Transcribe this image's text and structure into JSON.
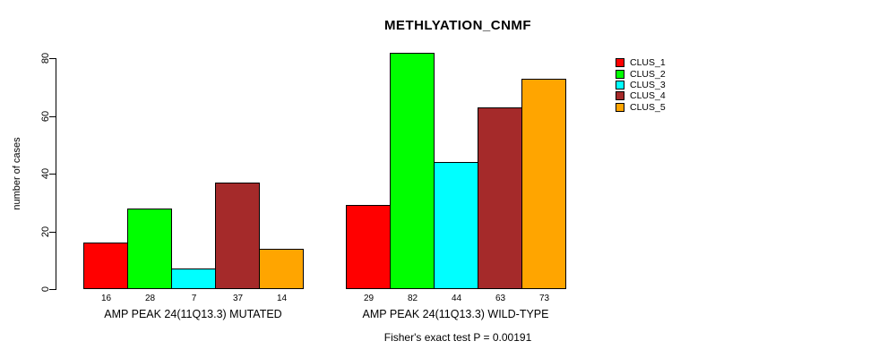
{
  "title": "METHLYATION_CNMF",
  "y_axis": {
    "label": "number of cases",
    "ticks": [
      0,
      20,
      40,
      60,
      80
    ]
  },
  "footer": "Fisher's exact test P = 0.00191",
  "legend": {
    "entries": [
      {
        "label": "CLUS_1",
        "color": "#FF0000"
      },
      {
        "label": "CLUS_2",
        "color": "#00FF00"
      },
      {
        "label": "CLUS_3",
        "color": "#00FFFF"
      },
      {
        "label": "CLUS_4",
        "color": "#A52A2A"
      },
      {
        "label": "CLUS_5",
        "color": "#FFA500"
      }
    ]
  },
  "chart_data": {
    "type": "bar",
    "title": "METHLYATION_CNMF",
    "xlabel": "",
    "ylabel": "number of cases",
    "ylim": [
      0,
      80
    ],
    "yticks": [
      0,
      20,
      40,
      60,
      80
    ],
    "grid": false,
    "legend_position": "right",
    "categories": [
      "CLUS_1",
      "CLUS_2",
      "CLUS_3",
      "CLUS_4",
      "CLUS_5"
    ],
    "colors": [
      "#FF0000",
      "#00FF00",
      "#00FFFF",
      "#A52A2A",
      "#FFA500"
    ],
    "groups": [
      {
        "label": "AMP PEAK 24(11Q13.3) MUTATED",
        "values": [
          16,
          28,
          7,
          37,
          14
        ]
      },
      {
        "label": "AMP PEAK 24(11Q13.3) WILD-TYPE",
        "values": [
          29,
          82,
          44,
          63,
          73
        ]
      }
    ],
    "bar_value_labels_shown": true,
    "annotation": "Fisher's exact test P = 0.00191"
  }
}
